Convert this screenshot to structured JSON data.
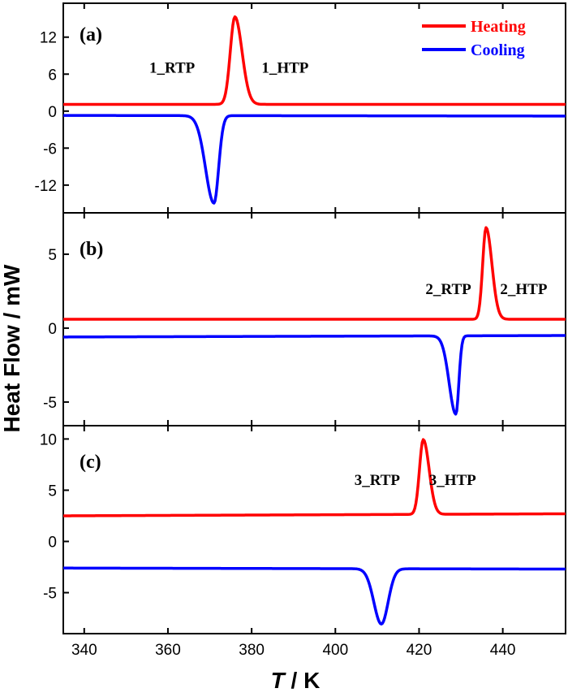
{
  "chart_data": {
    "type": "line",
    "ylabel": "Heat Flow / mW",
    "xlabel_italic": "T",
    "xlabel_rest": " / K",
    "xlim": [
      335,
      455
    ],
    "x_ticks": [
      340,
      360,
      380,
      400,
      420,
      440
    ],
    "grid": false,
    "legend_position": "top-right",
    "legend": [
      {
        "name": "Heating",
        "color": "#ff0000"
      },
      {
        "name": "Cooling",
        "color": "#0000ff"
      }
    ],
    "panels": [
      {
        "label": "(a)",
        "ylim": [
          -16.5,
          17.5
        ],
        "y_ticks": [
          12,
          6,
          0,
          -6,
          -12
        ],
        "y_tick_labels": [
          "12",
          "6",
          "0",
          "-6",
          "-12"
        ],
        "annotations": [
          {
            "text": "1_RTP",
            "x": 361,
            "y": 6.2
          },
          {
            "text": "1_HTP",
            "x": 388,
            "y": 6.2
          }
        ],
        "series": [
          {
            "name": "Heating",
            "color": "#ff0000",
            "baseline": 1.1,
            "baseline_end": 1.1,
            "peak_x": 376,
            "peak_height": 14.2,
            "sigma_left": 1.1,
            "sigma_right": 1.7
          },
          {
            "name": "Cooling",
            "color": "#0000ff",
            "baseline": -0.7,
            "baseline_end": -0.8,
            "peak_x": 371,
            "peak_height": -14.2,
            "sigma_left": 2.0,
            "sigma_right": 1.1
          }
        ]
      },
      {
        "label": "(b)",
        "ylim": [
          -6.6,
          7.8
        ],
        "y_ticks": [
          5,
          0,
          -5
        ],
        "y_tick_labels": [
          "5",
          "0",
          "-5"
        ],
        "annotations": [
          {
            "text": "2_RTP",
            "x": 427,
            "y": 2.3
          },
          {
            "text": "2_HTP",
            "x": 445,
            "y": 2.3
          }
        ],
        "series": [
          {
            "name": "Heating",
            "color": "#ff0000",
            "baseline": 0.6,
            "baseline_end": 0.6,
            "peak_x": 436,
            "peak_height": 6.2,
            "sigma_left": 0.8,
            "sigma_right": 1.4
          },
          {
            "name": "Cooling",
            "color": "#0000ff",
            "baseline": -0.6,
            "baseline_end": -0.5,
            "peak_x": 428.8,
            "peak_height": -5.3,
            "sigma_left": 1.6,
            "sigma_right": 0.7
          }
        ]
      },
      {
        "label": "(c)",
        "ylim": [
          -9.0,
          11.3
        ],
        "y_ticks": [
          10,
          5,
          0,
          -5
        ],
        "y_tick_labels": [
          "10",
          "5",
          "0",
          "-5"
        ],
        "annotations": [
          {
            "text": "3_RTP",
            "x": 410,
            "y": 5.5
          },
          {
            "text": "3_HTP",
            "x": 428,
            "y": 5.5
          }
        ],
        "series": [
          {
            "name": "Heating",
            "color": "#ff0000",
            "baseline": 2.5,
            "baseline_end": 2.7,
            "peak_x": 421,
            "peak_height": 7.3,
            "sigma_left": 0.9,
            "sigma_right": 1.4
          },
          {
            "name": "Cooling",
            "color": "#0000ff",
            "baseline": -2.6,
            "baseline_end": -2.7,
            "peak_x": 411,
            "peak_height": -5.4,
            "sigma_left": 1.8,
            "sigma_right": 1.6
          }
        ]
      }
    ]
  }
}
